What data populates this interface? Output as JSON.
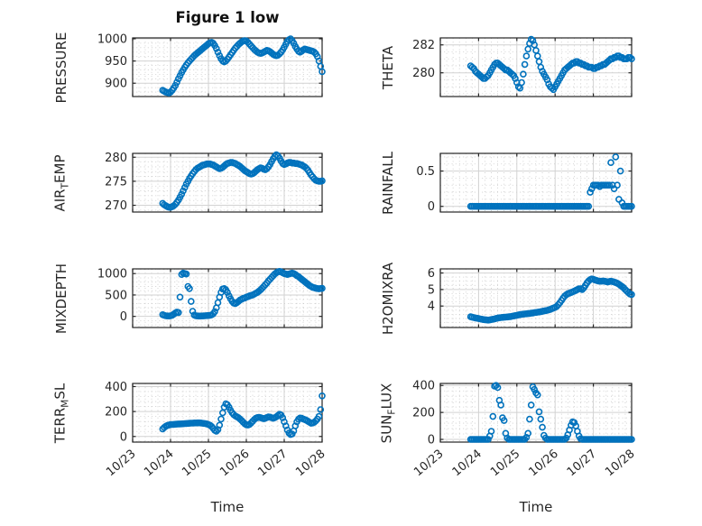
{
  "figure": {
    "title": "Figure 1 low",
    "x_label": "Time",
    "background": "#ffffff",
    "marker": {
      "shape": "open-circle",
      "color": "#0072BD",
      "radius": 3,
      "stroke_width": 1.6
    },
    "axis": {
      "box_color": "#262626",
      "text_color": "#262626",
      "grid_major_color": "#d2d2d2",
      "grid_minor_color": "#c8c8c8"
    }
  },
  "time_axis": {
    "label": "Time",
    "tick_labels": [
      "10/23",
      "10/24",
      "10/25",
      "10/26",
      "10/27",
      "10/28"
    ],
    "tick_days": [
      0,
      1,
      2,
      3,
      4,
      5
    ],
    "minor_per_day": 6,
    "range_days": [
      0,
      5
    ],
    "t0_days": 0.792,
    "dt_days": 0.0416667,
    "x_unit": "days after 10/23 00:00"
  },
  "chart_data": [
    {
      "type": "scatter",
      "name": "PRESSURE",
      "row": 0,
      "col": 0,
      "label_parts": [
        {
          "text": "PRESSURE",
          "sub": false
        }
      ],
      "ylim": [
        870,
        1002
      ],
      "yticks": [
        900,
        950,
        1000
      ],
      "yminor_step": 10,
      "values": [
        884,
        882,
        880,
        879,
        878,
        880,
        884,
        889,
        895,
        902,
        910,
        917,
        924,
        930,
        936,
        941,
        946,
        950,
        954,
        958,
        962,
        965,
        968,
        971,
        974,
        977,
        980,
        983,
        986,
        989,
        991,
        992,
        990,
        985,
        978,
        970,
        962,
        955,
        950,
        948,
        950,
        954,
        959,
        964,
        969,
        974,
        979,
        983,
        987,
        990,
        993,
        995,
        996,
        995,
        992,
        988,
        984,
        980,
        976,
        973,
        970,
        968,
        967,
        968,
        970,
        972,
        974,
        973,
        971,
        968,
        965,
        963,
        962,
        963,
        966,
        970,
        975,
        981,
        988,
        994,
        998,
        1000,
        996,
        990,
        983,
        977,
        972,
        970,
        972,
        975,
        977,
        976,
        975,
        974,
        973,
        972,
        970,
        966,
        960,
        950,
        938,
        926
      ]
    },
    {
      "type": "scatter",
      "name": "THETA",
      "row": 0,
      "col": 1,
      "label_parts": [
        {
          "text": "THETA",
          "sub": false
        }
      ],
      "ylim": [
        278.3,
        282.5
      ],
      "yticks": [
        280,
        282
      ],
      "yminor_step": 0.5,
      "values": [
        280.5,
        280.4,
        280.3,
        280.1,
        280.0,
        279.9,
        279.8,
        279.7,
        279.6,
        279.6,
        279.7,
        279.8,
        280.0,
        280.2,
        280.4,
        280.6,
        280.7,
        280.7,
        280.6,
        280.5,
        280.4,
        280.3,
        280.2,
        280.2,
        280.1,
        280.0,
        279.9,
        279.8,
        279.6,
        279.3,
        279.0,
        278.9,
        279.3,
        279.9,
        280.6,
        281.2,
        281.7,
        282.1,
        282.4,
        282.3,
        282.0,
        281.6,
        281.2,
        280.8,
        280.4,
        280.1,
        279.9,
        279.7,
        279.5,
        279.2,
        279.0,
        278.9,
        278.8,
        279.0,
        279.2,
        279.4,
        279.6,
        279.8,
        280.0,
        280.2,
        280.3,
        280.4,
        280.5,
        280.6,
        280.7,
        280.7,
        280.8,
        280.8,
        280.7,
        280.7,
        280.6,
        280.6,
        280.5,
        280.5,
        280.4,
        280.4,
        280.4,
        280.3,
        280.3,
        280.4,
        280.4,
        280.5,
        280.5,
        280.6,
        280.6,
        280.7,
        280.8,
        280.9,
        281.0,
        281.0,
        281.1,
        281.1,
        281.2,
        281.2,
        281.1,
        281.1,
        281.0,
        281.0,
        281.0,
        281.1,
        281.1,
        281.0
      ]
    },
    {
      "type": "scatter",
      "name": "AIR_TEMP",
      "row": 1,
      "col": 0,
      "label_parts": [
        {
          "text": "AIR",
          "sub": false
        },
        {
          "text": "T",
          "sub": true
        },
        {
          "text": "EMP",
          "sub": false
        }
      ],
      "ylim": [
        268.6,
        280.8
      ],
      "yticks": [
        270,
        275,
        280
      ],
      "yminor_step": 1,
      "values": [
        270.4,
        270.1,
        269.9,
        269.7,
        269.6,
        269.6,
        269.7,
        269.9,
        270.2,
        270.6,
        271.1,
        271.7,
        272.3,
        273.0,
        273.7,
        274.4,
        275.0,
        275.6,
        276.1,
        276.6,
        277.0,
        277.4,
        277.7,
        277.9,
        278.1,
        278.3,
        278.4,
        278.5,
        278.6,
        278.6,
        278.6,
        278.5,
        278.4,
        278.2,
        278.0,
        277.8,
        277.6,
        277.7,
        277.9,
        278.2,
        278.5,
        278.7,
        278.8,
        278.9,
        278.9,
        278.8,
        278.7,
        278.5,
        278.3,
        278.1,
        277.8,
        277.5,
        277.2,
        277.0,
        276.8,
        276.6,
        276.5,
        276.6,
        276.8,
        277.1,
        277.4,
        277.6,
        277.8,
        277.7,
        277.5,
        277.4,
        277.6,
        278.0,
        278.5,
        279.1,
        279.7,
        280.2,
        280.5,
        280.3,
        279.8,
        279.2,
        278.7,
        278.5,
        278.6,
        278.8,
        278.9,
        278.9,
        278.8,
        278.8,
        278.7,
        278.7,
        278.6,
        278.5,
        278.4,
        278.2,
        278.0,
        277.7,
        277.3,
        276.8,
        276.3,
        275.9,
        275.5,
        275.2,
        275.1,
        275.0,
        275.0,
        275.1
      ]
    },
    {
      "type": "scatter",
      "name": "RAINFALL",
      "row": 1,
      "col": 1,
      "label_parts": [
        {
          "text": "RAINFALL",
          "sub": false
        }
      ],
      "ylim": [
        -0.08,
        0.75
      ],
      "yticks": [
        0,
        0.5
      ],
      "yminor_step": 0.1,
      "values": [
        0,
        0,
        0,
        0,
        0,
        0,
        0,
        0,
        0,
        0,
        0,
        0,
        0,
        0,
        0,
        0,
        0,
        0,
        0,
        0,
        0,
        0,
        0,
        0,
        0,
        0,
        0,
        0,
        0,
        0,
        0,
        0,
        0,
        0,
        0,
        0,
        0,
        0,
        0,
        0,
        0,
        0,
        0,
        0,
        0,
        0,
        0,
        0,
        0,
        0,
        0,
        0,
        0,
        0,
        0,
        0,
        0,
        0,
        0,
        0,
        0,
        0,
        0,
        0,
        0,
        0,
        0,
        0,
        0,
        0,
        0,
        0,
        0,
        0,
        0,
        0.2,
        0.25,
        0.3,
        0.3,
        0.3,
        0.3,
        0.28,
        0.3,
        0.3,
        0.3,
        0.3,
        0.3,
        0.3,
        0.62,
        0.3,
        0.25,
        0.7,
        0.3,
        0.1,
        0.5,
        0.05,
        0,
        0,
        0,
        0,
        0,
        0
      ]
    },
    {
      "type": "scatter",
      "name": "MIXDEPTH",
      "row": 2,
      "col": 0,
      "label_parts": [
        {
          "text": "MIXDEPTH",
          "sub": false
        }
      ],
      "ylim": [
        -260,
        1110
      ],
      "yticks": [
        0,
        500,
        1000
      ],
      "yminor_step": 100,
      "values": [
        40,
        25,
        15,
        10,
        10,
        15,
        25,
        50,
        80,
        100,
        90,
        450,
        980,
        1010,
        1000,
        990,
        700,
        650,
        350,
        120,
        30,
        15,
        10,
        8,
        8,
        10,
        12,
        15,
        18,
        20,
        25,
        35,
        60,
        110,
        200,
        320,
        450,
        560,
        640,
        650,
        620,
        560,
        480,
        410,
        350,
        310,
        300,
        320,
        350,
        380,
        400,
        420,
        430,
        450,
        460,
        480,
        490,
        500,
        520,
        540,
        560,
        590,
        620,
        660,
        700,
        740,
        780,
        830,
        870,
        910,
        950,
        990,
        1020,
        1040,
        1050,
        1040,
        1020,
        1000,
        990,
        980,
        990,
        1000,
        1010,
        1000,
        980,
        950,
        930,
        900,
        870,
        840,
        810,
        780,
        750,
        720,
        700,
        680,
        670,
        660,
        650,
        645,
        650,
        655
      ]
    },
    {
      "type": "scatter",
      "name": "H2OMIXRA",
      "row": 2,
      "col": 1,
      "label_parts": [
        {
          "text": "H2OMIXRA",
          "sub": false
        }
      ],
      "ylim": [
        2.7,
        6.25
      ],
      "yticks": [
        4,
        5,
        6
      ],
      "yminor_step": 0.25,
      "values": [
        3.35,
        3.32,
        3.3,
        3.28,
        3.26,
        3.24,
        3.22,
        3.2,
        3.18,
        3.17,
        3.16,
        3.15,
        3.16,
        3.18,
        3.2,
        3.22,
        3.25,
        3.27,
        3.29,
        3.3,
        3.31,
        3.32,
        3.33,
        3.34,
        3.35,
        3.36,
        3.38,
        3.4,
        3.42,
        3.44,
        3.46,
        3.48,
        3.5,
        3.51,
        3.52,
        3.53,
        3.54,
        3.55,
        3.57,
        3.58,
        3.6,
        3.61,
        3.63,
        3.64,
        3.66,
        3.68,
        3.7,
        3.72,
        3.74,
        3.77,
        3.8,
        3.84,
        3.88,
        3.92,
        3.98,
        4.08,
        4.2,
        4.34,
        4.48,
        4.6,
        4.68,
        4.74,
        4.78,
        4.82,
        4.86,
        4.9,
        4.95,
        5.0,
        5.05,
        5.05,
        5.0,
        5.1,
        5.25,
        5.4,
        5.52,
        5.6,
        5.64,
        5.62,
        5.58,
        5.55,
        5.52,
        5.5,
        5.5,
        5.52,
        5.5,
        5.48,
        5.45,
        5.48,
        5.5,
        5.48,
        5.45,
        5.42,
        5.38,
        5.32,
        5.25,
        5.18,
        5.1,
        5.0,
        4.9,
        4.8,
        4.72,
        4.7
      ]
    },
    {
      "type": "scatter",
      "name": "TERR_MSL",
      "row": 3,
      "col": 0,
      "label_parts": [
        {
          "text": "TERR",
          "sub": false
        },
        {
          "text": "M",
          "sub": true
        },
        {
          "text": "SL",
          "sub": false
        }
      ],
      "ylim": [
        -45,
        425
      ],
      "yticks": [
        0,
        200,
        400
      ],
      "yminor_step": 40,
      "values": [
        60,
        72,
        82,
        88,
        92,
        95,
        96,
        97,
        98,
        99,
        100,
        100,
        101,
        102,
        103,
        104,
        105,
        106,
        107,
        107,
        108,
        108,
        109,
        109,
        108,
        107,
        105,
        103,
        100,
        96,
        90,
        80,
        65,
        50,
        42,
        55,
        90,
        140,
        190,
        235,
        262,
        255,
        235,
        210,
        190,
        175,
        165,
        158,
        150,
        140,
        128,
        115,
        102,
        94,
        92,
        96,
        108,
        122,
        136,
        146,
        152,
        154,
        151,
        146,
        142,
        146,
        152,
        157,
        155,
        150,
        146,
        150,
        158,
        168,
        178,
        172,
        150,
        118,
        85,
        52,
        28,
        16,
        20,
        45,
        85,
        118,
        138,
        148,
        146,
        140,
        135,
        130,
        122,
        114,
        106,
        108,
        115,
        125,
        140,
        160,
        215,
        325
      ]
    },
    {
      "type": "scatter",
      "name": "SUN_FLUX",
      "row": 3,
      "col": 1,
      "label_parts": [
        {
          "text": "SUN",
          "sub": false
        },
        {
          "text": "F",
          "sub": true
        },
        {
          "text": "LUX",
          "sub": false
        }
      ],
      "ylim": [
        -20,
        415
      ],
      "yticks": [
        0,
        200,
        400
      ],
      "yminor_step": 40,
      "values": [
        0,
        0,
        0,
        0,
        0,
        0,
        0,
        0,
        0,
        0,
        0,
        0,
        25,
        60,
        170,
        395,
        400,
        385,
        290,
        255,
        160,
        140,
        45,
        10,
        0,
        0,
        0,
        0,
        0,
        0,
        0,
        0,
        0,
        0,
        0,
        15,
        45,
        150,
        255,
        390,
        370,
        345,
        330,
        205,
        150,
        90,
        30,
        10,
        0,
        0,
        0,
        0,
        0,
        0,
        0,
        0,
        0,
        0,
        0,
        0,
        10,
        35,
        70,
        105,
        130,
        125,
        100,
        60,
        25,
        5,
        0,
        0,
        0,
        0,
        0,
        0,
        0,
        0,
        0,
        0,
        0,
        0,
        0,
        0,
        0,
        0,
        0,
        0,
        0,
        0,
        0,
        0,
        0,
        0,
        0,
        0,
        0,
        0,
        0,
        0,
        0,
        0
      ]
    }
  ]
}
